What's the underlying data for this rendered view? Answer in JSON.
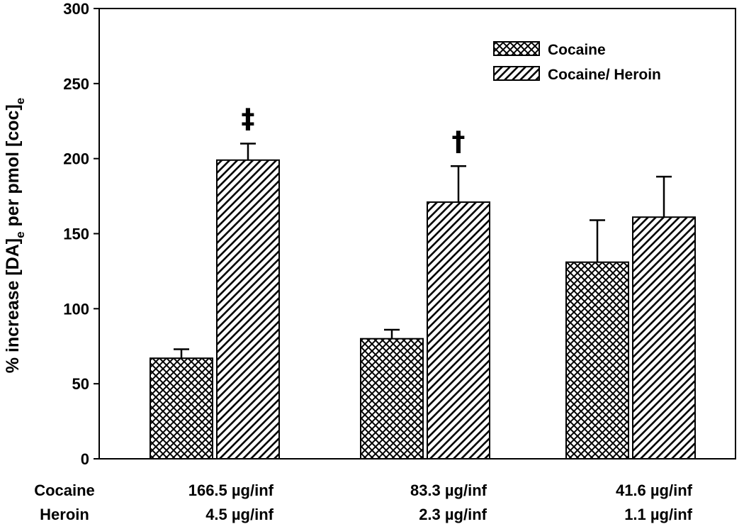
{
  "chart_data": {
    "type": "bar",
    "ylabel": {
      "prefix": "% increase [DA]",
      "sub1": "e",
      "middle": " per pmol [coc]",
      "sub2": "e"
    },
    "ylim": [
      0,
      300
    ],
    "yticks": [
      0,
      50,
      100,
      150,
      200,
      250,
      300
    ],
    "grid": false,
    "legend_position": "top-right",
    "row_labels": [
      "Cocaine",
      "Heroin"
    ],
    "categories": [
      {
        "cocaine": "166.5 µg/inf",
        "heroin": "4.5 µg/inf"
      },
      {
        "cocaine": "83.3 µg/inf",
        "heroin": "2.3 µg/inf"
      },
      {
        "cocaine": "41.6 µg/inf",
        "heroin": "1.1 µg/inf"
      }
    ],
    "series": [
      {
        "name": "Cocaine",
        "pattern": "crosshatch",
        "values": [
          67,
          80,
          131
        ],
        "errors": [
          6,
          6,
          28
        ]
      },
      {
        "name": "Cocaine/ Heroin",
        "pattern": "diagonal",
        "values": [
          199,
          171,
          161
        ],
        "errors": [
          11,
          24,
          27
        ]
      }
    ],
    "annotations": [
      {
        "series": 1,
        "category": 0,
        "text": "‡"
      },
      {
        "series": 1,
        "category": 1,
        "text": "†"
      }
    ]
  }
}
